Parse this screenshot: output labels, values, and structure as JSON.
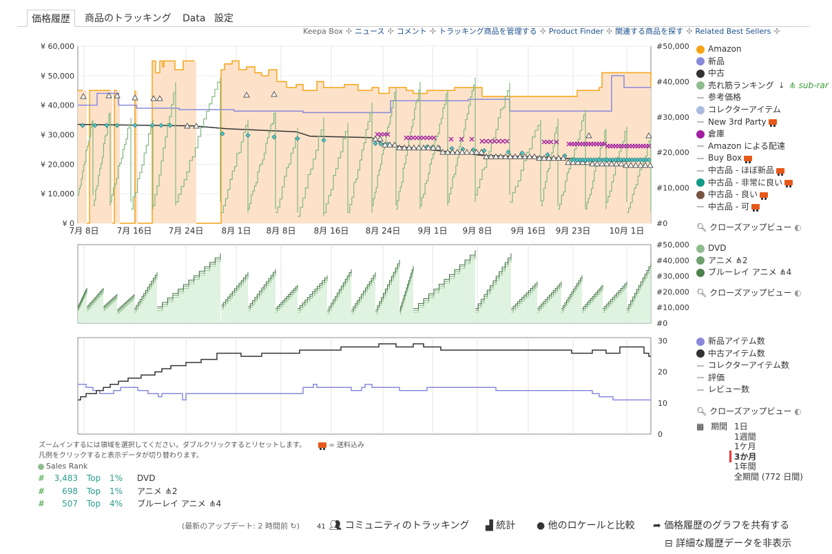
{
  "tabs": [
    "価格履歴",
    "商品のトラッキング",
    "Data",
    "設定"
  ],
  "sublinks": {
    "keepa_box": "Keepa Box",
    "items": [
      "ニュース",
      "コメント",
      "トラッキング商品を管理する",
      "Product Finder",
      "関連する商品を探す",
      "Related Best Sellers"
    ]
  },
  "chart1": {
    "left_ticks": [
      "¥ 60,000",
      "¥ 50,000",
      "¥ 40,000",
      "¥ 30,000",
      "¥ 20,000",
      "¥ 10,000",
      "¥ 0"
    ],
    "right_ticks": [
      "#50,000",
      "#40,000",
      "#30,000",
      "#20,000",
      "#10,000",
      "#0"
    ],
    "x_ticks": [
      "7月 8日",
      "7月 16日",
      "7月 24日",
      "8月 1日",
      "8月 8日",
      "8月 16日",
      "8月 24日",
      "9月 1日",
      "9月 8日",
      "9月 16日",
      "9月 23日",
      "10月 1日"
    ]
  },
  "chart2": {
    "right_ticks": [
      "#50,000",
      "#40,000",
      "#30,000",
      "#20,000",
      "#10,000",
      "#0"
    ]
  },
  "chart3": {
    "right_ticks": [
      "30",
      "20",
      "10",
      "0"
    ]
  },
  "legend1": {
    "items": [
      {
        "label": "Amazon",
        "color": "#f6a316",
        "kind": "dot"
      },
      {
        "label": "新品",
        "color": "#8888dd",
        "kind": "dot"
      },
      {
        "label": "中古",
        "color": "#333333",
        "kind": "dot"
      },
      {
        "label": "売れ筋ランキング",
        "color": "#8fbc8f",
        "kind": "dot",
        "extra": "sub-rar"
      },
      {
        "label": "参考価格",
        "kind": "dash"
      },
      {
        "label": "コレクターアイテム",
        "color": "#aabbdd",
        "kind": "dot"
      },
      {
        "label": "New 3rd Party",
        "kind": "dash",
        "truck": true
      },
      {
        "label": "倉庫",
        "color": "#a020a0",
        "kind": "dot"
      },
      {
        "label": "Amazon による配達",
        "kind": "dash"
      },
      {
        "label": "Buy Box",
        "kind": "dash",
        "truck": true
      },
      {
        "label": "中古品 - ほぼ新品",
        "kind": "dash",
        "truck": true
      },
      {
        "label": "中古品 - 非常に良い",
        "color": "#119988",
        "kind": "dot",
        "truck": true
      },
      {
        "label": "中古品 - 良い",
        "color": "#775544",
        "kind": "dot",
        "truck": true
      },
      {
        "label": "中古品 - 可",
        "kind": "dash",
        "truck": true
      }
    ],
    "closeup": "クローズアップビュー"
  },
  "legend2": {
    "items": [
      {
        "label": "DVD",
        "color": "#8fbc8f",
        "count": ""
      },
      {
        "label": "アニメ",
        "color": "#6fa06f",
        "count": "2"
      },
      {
        "label": "ブルーレイ アニメ",
        "color": "#4f804f",
        "count": "4"
      }
    ],
    "closeup": "クローズアップビュー"
  },
  "legend3": {
    "items": [
      {
        "label": "新品アイテム数",
        "color": "#8888dd",
        "kind": "dot"
      },
      {
        "label": "中古アイテム数",
        "color": "#333333",
        "kind": "dot"
      },
      {
        "label": "コレクターアイテム数",
        "kind": "dash"
      },
      {
        "label": "評価",
        "kind": "dash"
      },
      {
        "label": "レビュー数",
        "kind": "dash"
      }
    ],
    "closeup": "クローズアップビュー"
  },
  "period": {
    "label": "期間",
    "options": [
      "1日",
      "1週間",
      "1ケ月",
      "3か月",
      "1年間",
      "全期間 (772 日間)"
    ],
    "selected": "3か月"
  },
  "hints": {
    "line1": "ズームインするには領域を選択してください。ダブルクリックするとリセットします。",
    "shipping": "= 送料込み",
    "line2": "凡例をクリックすると表示データが切り替わります。"
  },
  "sales_rank": {
    "title": "Sales Rank",
    "rows": [
      {
        "rank": "3,483",
        "top": "Top",
        "pct": "1%",
        "category": "DVD",
        "count": ""
      },
      {
        "rank": "698",
        "top": "Top",
        "pct": "1%",
        "category": "アニメ",
        "count": "2"
      },
      {
        "rank": "507",
        "top": "Top",
        "pct": "4%",
        "category": "ブルーレイ アニメ",
        "count": "4"
      }
    ]
  },
  "footer": {
    "update": "(最新のアップデート: 2 時間前",
    "community_count": "41",
    "community": "コミュニティのトラッキング",
    "stats": "統計",
    "compare": "他のロケールと比較",
    "share": "価格履歴のグラフを共有する",
    "hide": "詳細な履歴データを非表示"
  }
}
